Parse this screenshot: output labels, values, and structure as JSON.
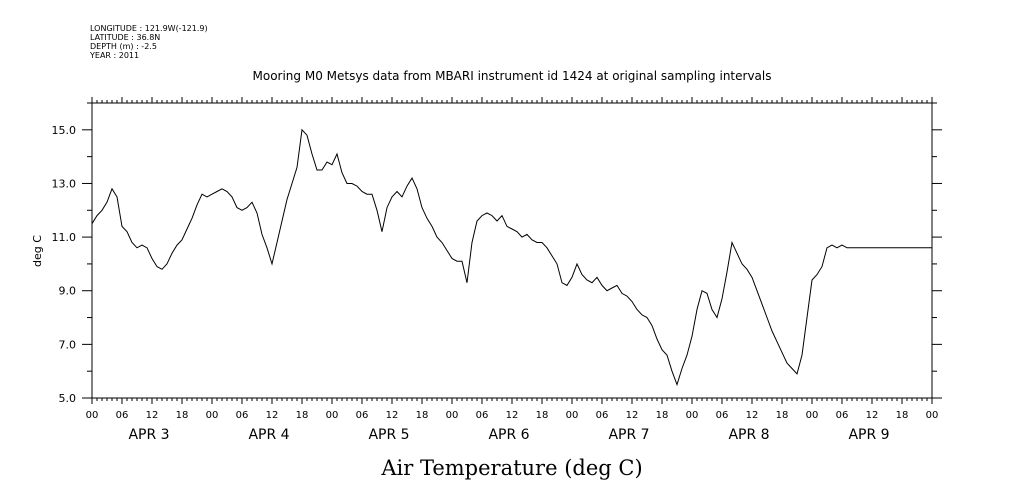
{
  "meta": {
    "longitude": "LONGITUDE : 121.9W(-121.9)",
    "latitude": "LATITUDE : 36.8N",
    "depth": "DEPTH (m) : -2.5",
    "year": "YEAR : 2011"
  },
  "chart_data": {
    "type": "line",
    "title": "Mooring M0 Metsys data from MBARI instrument id 1424 at original sampling intervals",
    "xlabel": "Air Temperature (deg C)",
    "ylabel": "deg C",
    "ylim": [
      5.0,
      16.0
    ],
    "yticks": [
      "5.0",
      "7.0",
      "9.0",
      "11.0",
      "13.0",
      "15.0"
    ],
    "xlim_hours": [
      0,
      168
    ],
    "hour_labels": [
      "00",
      "06",
      "12",
      "18",
      "00",
      "06",
      "12",
      "18",
      "00",
      "06",
      "12",
      "18",
      "00",
      "06",
      "12",
      "18",
      "00",
      "06",
      "12",
      "18",
      "00",
      "06",
      "12",
      "18",
      "00",
      "06",
      "12",
      "18",
      "00"
    ],
    "day_labels": [
      "APR 3",
      "APR 4",
      "APR 5",
      "APR 6",
      "APR 7",
      "APR 8",
      "APR 9"
    ],
    "grid": false,
    "series": [
      {
        "x": [
          0,
          1,
          2,
          3,
          4,
          5,
          6,
          7,
          8,
          9,
          10,
          11,
          12,
          13,
          14,
          15,
          16,
          17,
          18,
          19,
          20,
          21,
          22,
          23,
          24,
          25,
          26,
          27,
          28,
          29,
          30,
          31,
          32,
          33,
          34,
          35,
          36,
          37,
          38,
          39,
          40,
          41,
          42,
          43,
          44,
          45,
          46,
          47,
          48,
          49,
          50,
          51,
          52,
          53,
          54,
          55,
          56,
          57,
          58,
          59,
          60,
          61,
          62,
          63,
          64,
          65,
          66,
          67,
          68,
          69,
          70,
          71,
          72,
          73,
          74,
          75,
          76,
          77,
          78,
          79,
          80,
          81,
          82,
          83,
          84,
          85,
          86,
          87,
          88,
          89,
          90,
          91,
          92,
          93,
          94,
          95,
          96,
          97,
          98,
          99,
          100,
          101,
          102,
          103,
          104,
          105,
          106,
          107,
          108,
          109,
          110,
          111,
          112,
          113,
          114,
          115,
          116,
          117,
          118,
          119,
          120,
          121,
          122,
          123,
          124,
          125,
          126,
          127,
          128,
          129,
          130,
          131,
          132,
          133,
          134,
          135,
          136,
          137,
          138,
          139,
          140,
          141,
          142,
          143,
          144,
          145,
          146,
          147,
          148,
          149,
          150,
          151,
          152,
          153,
          154,
          155,
          156,
          157,
          158,
          159,
          160,
          161,
          162,
          163,
          164,
          165,
          166,
          167,
          168
        ],
        "y": [
          11.5,
          11.8,
          12.0,
          12.3,
          12.8,
          12.5,
          11.4,
          11.2,
          10.8,
          10.6,
          10.7,
          10.6,
          10.2,
          9.9,
          9.8,
          10.0,
          10.4,
          10.7,
          10.9,
          11.3,
          11.7,
          12.2,
          12.6,
          12.5,
          12.6,
          12.7,
          12.8,
          12.7,
          12.5,
          12.1,
          12.0,
          12.1,
          12.3,
          11.9,
          11.1,
          10.6,
          10.0,
          10.8,
          11.6,
          12.4,
          13.0,
          13.6,
          15.0,
          14.8,
          14.1,
          13.5,
          13.5,
          13.8,
          13.7,
          14.1,
          13.4,
          13.0,
          13.0,
          12.9,
          12.7,
          12.6,
          12.6,
          12.0,
          11.2,
          12.1,
          12.5,
          12.7,
          12.5,
          12.9,
          13.2,
          12.8,
          12.1,
          11.7,
          11.4,
          11.0,
          10.8,
          10.5,
          10.2,
          10.1,
          10.1,
          9.3,
          10.8,
          11.6,
          11.8,
          11.9,
          11.8,
          11.6,
          11.8,
          11.4,
          11.3,
          11.2,
          11.0,
          11.1,
          10.9,
          10.8,
          10.8,
          10.6,
          10.3,
          10.0,
          9.3,
          9.2,
          9.5,
          10.0,
          9.6,
          9.4,
          9.3,
          9.5,
          9.2,
          9.0,
          9.1,
          9.2,
          8.9,
          8.8,
          8.6,
          8.3,
          8.1,
          8.0,
          7.7,
          7.2,
          6.8,
          6.6,
          6.0,
          5.5,
          6.1,
          6.6,
          7.3,
          8.3,
          9.0,
          8.9,
          8.3,
          8.0,
          8.7,
          9.7,
          10.8,
          10.4,
          10.0,
          9.8,
          9.5,
          9.0,
          8.5,
          8.0,
          7.5,
          7.1,
          6.7,
          6.3,
          6.1,
          5.9,
          6.6,
          8.0,
          9.4,
          9.6,
          9.9,
          10.6,
          10.7,
          10.6,
          10.7,
          10.6,
          10.6,
          10.6,
          10.6,
          10.6,
          10.6,
          10.6,
          10.6,
          10.6,
          10.6,
          10.6,
          10.6,
          10.6,
          10.6,
          10.6,
          10.6,
          10.6,
          10.6
        ]
      }
    ]
  }
}
